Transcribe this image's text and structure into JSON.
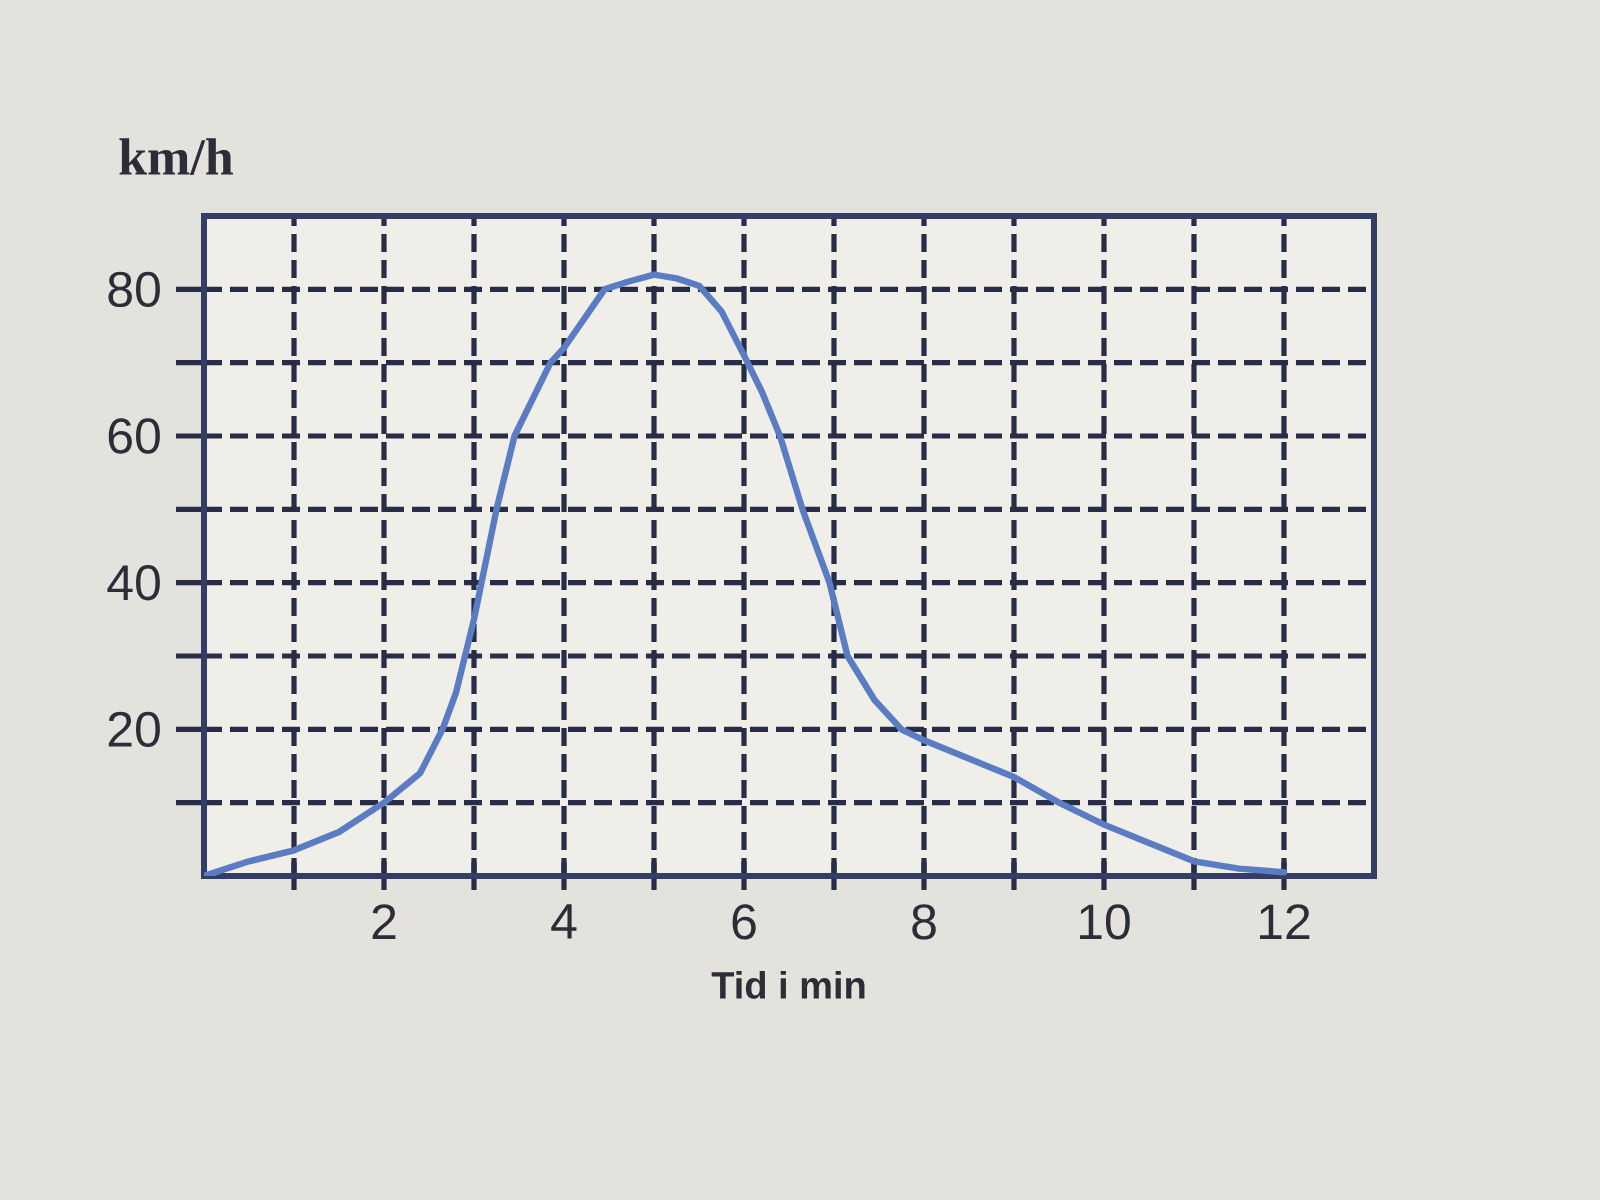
{
  "chart_data": {
    "type": "line",
    "ylabel": "km/h",
    "xlabel": "Tid i min",
    "xlim": [
      0,
      13
    ],
    "ylim": [
      0,
      90
    ],
    "xticks": [
      {
        "value": 1,
        "label": null
      },
      2,
      {
        "value": 3,
        "label": null
      },
      4,
      {
        "value": 5,
        "label": null
      },
      6,
      {
        "value": 7,
        "label": null
      },
      8,
      {
        "value": 9,
        "label": null
      },
      10,
      {
        "value": 11,
        "label": null
      },
      12
    ],
    "yticks": [
      {
        "value": 10,
        "label": null
      },
      20,
      {
        "value": 30,
        "label": null
      },
      40,
      {
        "value": 50,
        "label": null
      },
      60,
      {
        "value": 70,
        "label": null
      },
      80
    ],
    "grid": true,
    "marker": "none",
    "line_style": "solid",
    "series": [
      {
        "color": "#5a7cc2",
        "x": [
          0,
          0.5,
          1,
          1.5,
          2,
          2.4,
          2.65,
          2.8,
          3,
          3.25,
          3.45,
          3.85,
          4,
          4.45,
          4.7,
          5,
          5.25,
          5.5,
          5.75,
          6,
          6.2,
          6.4,
          6.65,
          6.95,
          7.15,
          7.45,
          7.75,
          8,
          8.5,
          9,
          9.5,
          10,
          10.5,
          11,
          11.5,
          12
        ],
        "values": [
          0,
          2,
          3.5,
          6,
          10,
          14,
          20,
          25,
          35,
          50,
          60,
          70,
          72,
          80,
          81,
          82,
          81.5,
          80.5,
          77,
          71,
          66,
          60,
          50,
          40,
          30,
          24,
          20,
          18.5,
          16,
          13.5,
          10,
          7,
          4.5,
          2,
          1,
          0.5
        ]
      }
    ]
  }
}
